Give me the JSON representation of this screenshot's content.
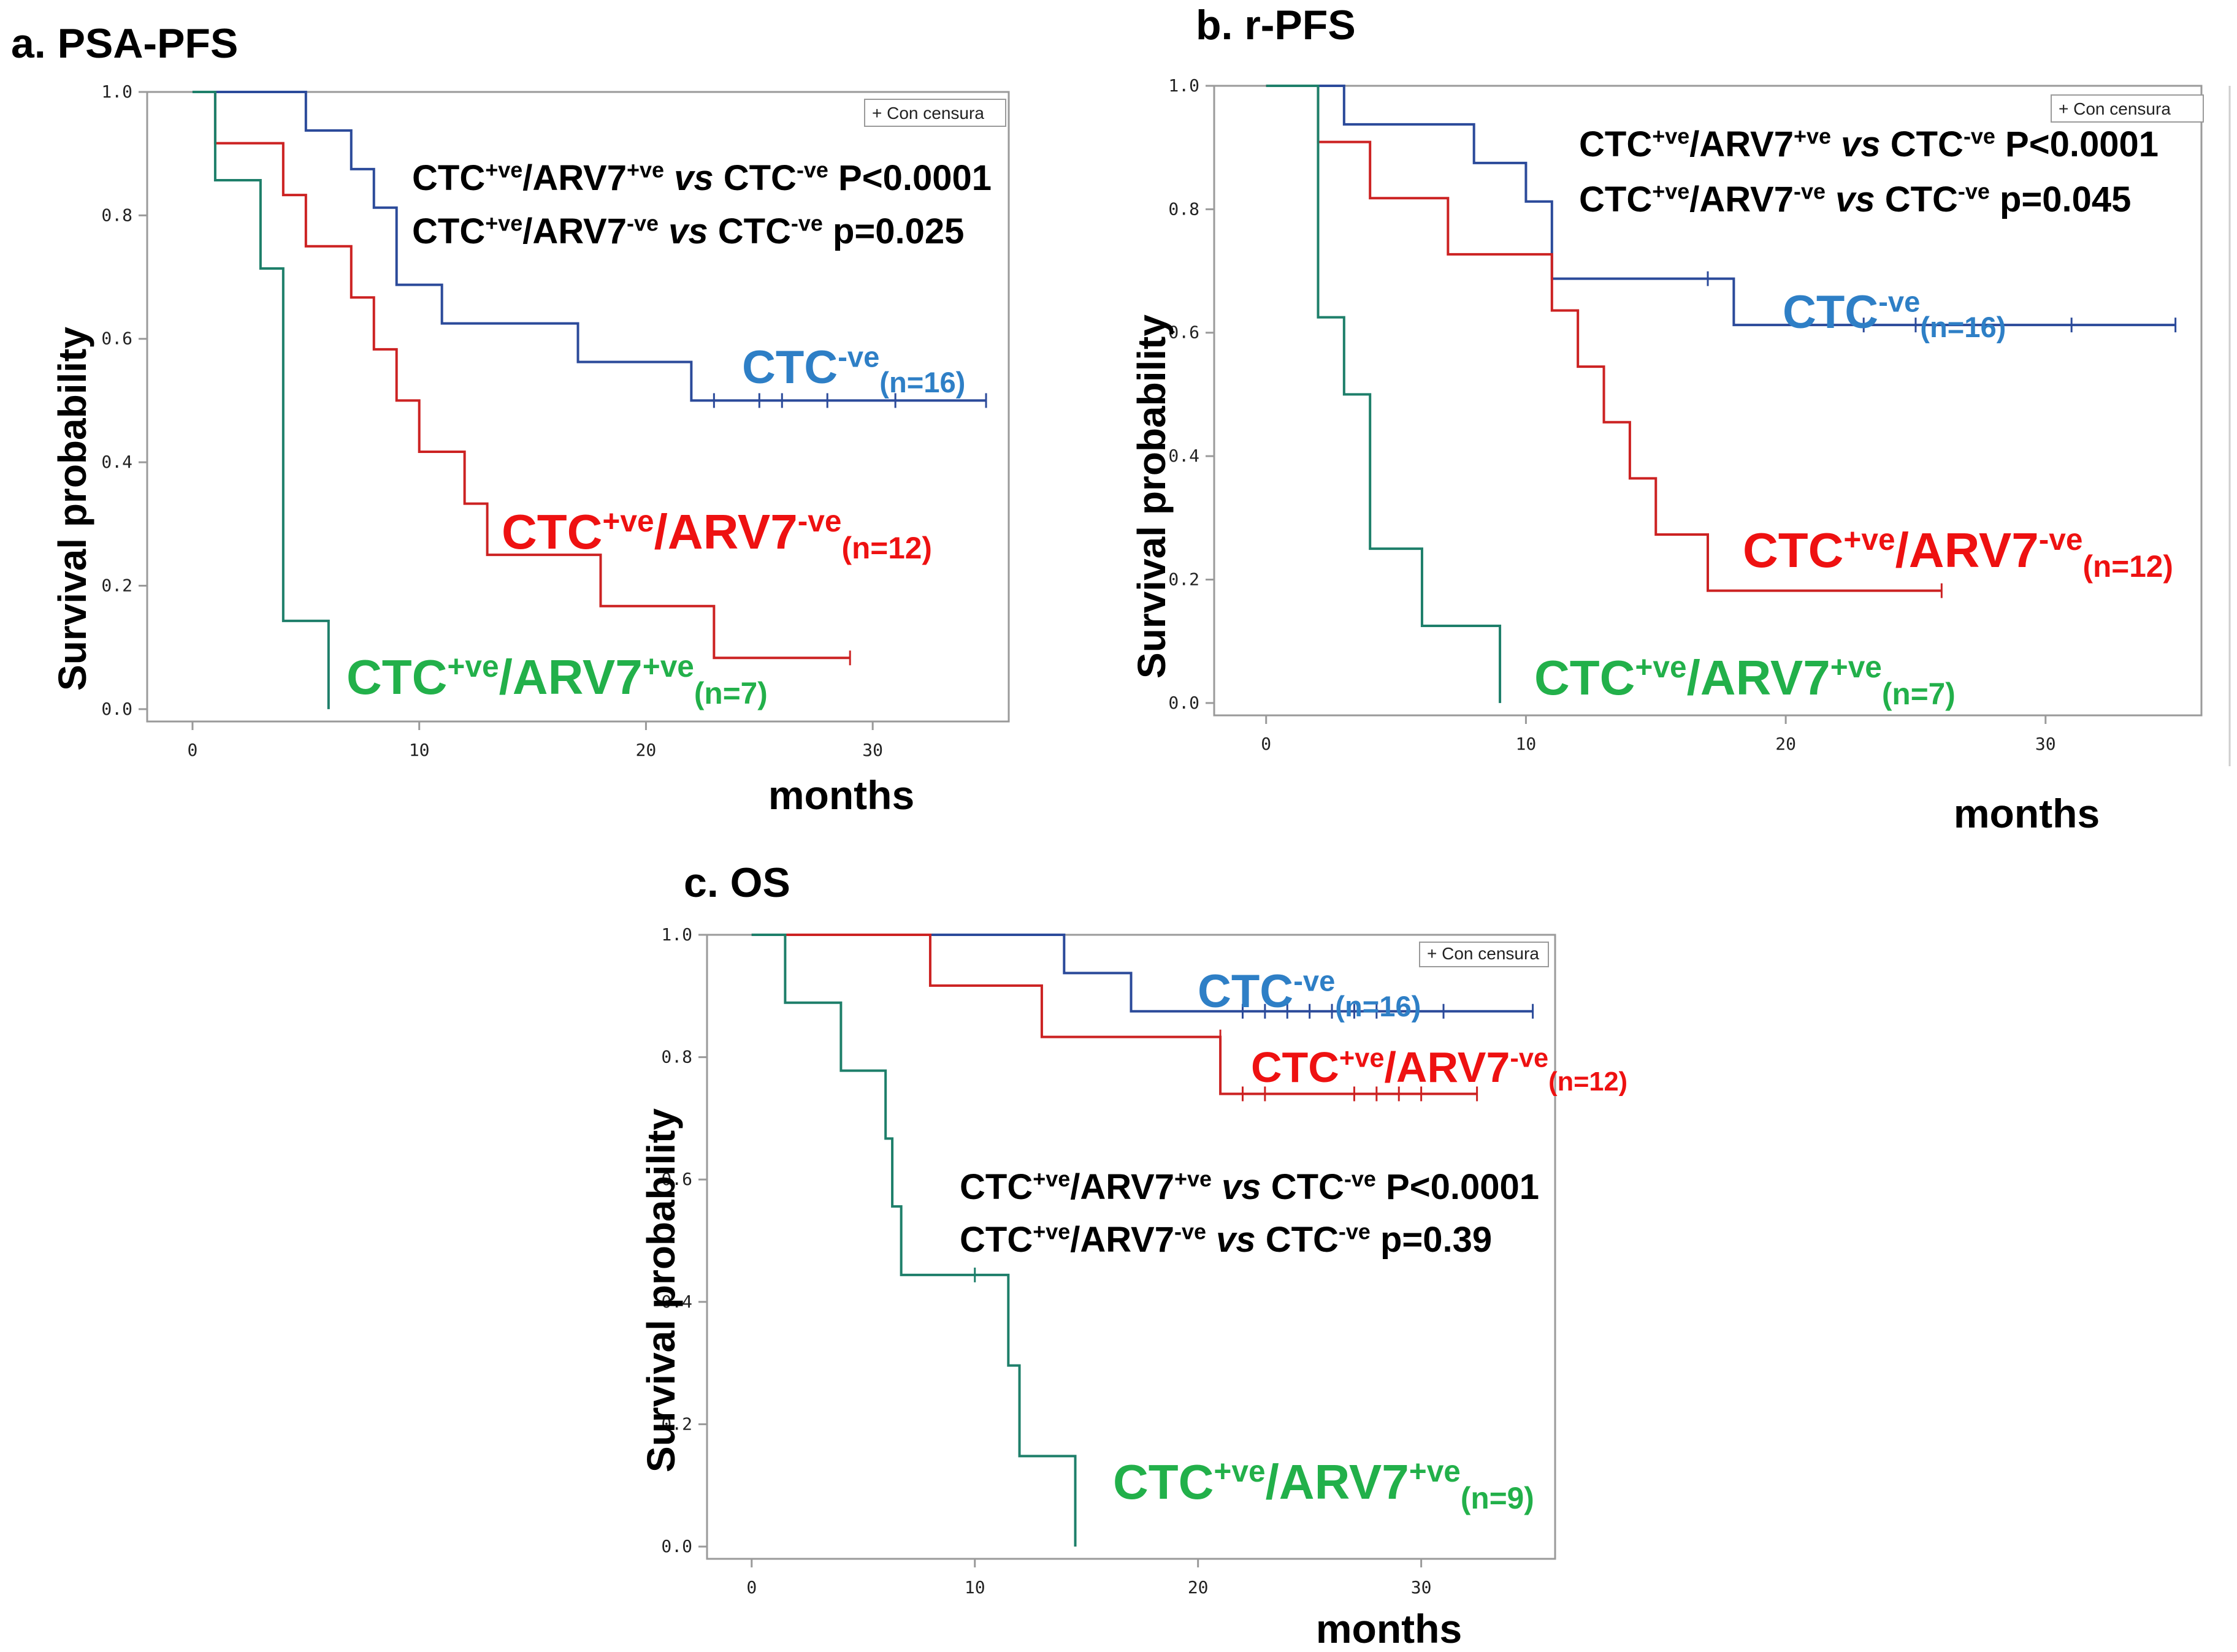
{
  "colors": {
    "ctc_neg": "#2B4A9A",
    "ctc_pos_arv7_neg": "#CC2222",
    "ctc_pos_arv7_pos": "#1E7F6A",
    "label_blue": "#2E7FC6",
    "label_red": "#EE1111",
    "label_green": "#22B04A",
    "frame": "#9a9a9a"
  },
  "chart_data": [
    {
      "type": "line",
      "subtype": "kaplan-meier",
      "title": "a. PSA-PFS",
      "xlabel": "months",
      "ylabel": "Survival probability",
      "xlim": [
        -2,
        36
      ],
      "ylim": [
        -0.02,
        1.0
      ],
      "xticks": [
        0,
        10,
        20,
        30
      ],
      "xtick_labels": [
        "0",
        "10",
        "20",
        "30"
      ],
      "yticks": [
        0.0,
        0.2,
        0.4,
        0.6,
        0.8,
        1.0
      ],
      "ytick_labels": [
        "0.0",
        "0.2",
        "0.4",
        "0.6",
        "0.8",
        "1.0"
      ],
      "legend": "+ Con censura",
      "stats": [
        {
          "sup_a": "+ve",
          "arv": "ARV7",
          "sup_b": "+ve",
          "ref": "CTC",
          "sup_c": "-ve",
          "p": "P<0.0001"
        },
        {
          "sup_a": "+ve",
          "arv": "ARV7",
          "sup_b": "-ve",
          "ref": "CTC",
          "sup_c": "-ve",
          "p": "p=0.025"
        }
      ],
      "series": [
        {
          "name": "CTC-ve",
          "n": "(n=16)",
          "color_key": "ctc_neg",
          "label_color_key": "label_blue",
          "steps": [
            [
              0,
              1.0
            ],
            [
              5,
              0.9375
            ],
            [
              7,
              0.875
            ],
            [
              8,
              0.8125
            ],
            [
              9,
              0.6875
            ],
            [
              11,
              0.625
            ],
            [
              17,
              0.5625
            ],
            [
              22,
              0.5
            ]
          ],
          "end": 35,
          "censors": [
            [
              23,
              0.5
            ],
            [
              25,
              0.5
            ],
            [
              26,
              0.5
            ],
            [
              28,
              0.5
            ],
            [
              31,
              0.5
            ],
            [
              35,
              0.5
            ]
          ]
        },
        {
          "name": "CTC+ve/ARV7-ve",
          "n": "(n=12)",
          "color_key": "ctc_pos_arv7_neg",
          "label_color_key": "label_red",
          "steps": [
            [
              0,
              1.0
            ],
            [
              1,
              0.917
            ],
            [
              4,
              0.833
            ],
            [
              5,
              0.75
            ],
            [
              7,
              0.667
            ],
            [
              8,
              0.583
            ],
            [
              9,
              0.5
            ],
            [
              10,
              0.417
            ],
            [
              12,
              0.333
            ],
            [
              13,
              0.25
            ],
            [
              18,
              0.167
            ],
            [
              23,
              0.083
            ]
          ],
          "end": 29,
          "censors": [
            [
              29,
              0.083
            ]
          ]
        },
        {
          "name": "CTC+ve/ARV7+ve",
          "n": "(n=7)",
          "color_key": "ctc_pos_arv7_pos",
          "label_color_key": "label_green",
          "steps": [
            [
              0,
              1.0
            ],
            [
              1,
              0.857
            ],
            [
              3,
              0.714
            ],
            [
              4,
              0.143
            ],
            [
              6,
              0.0
            ]
          ],
          "end": 6,
          "censors": []
        }
      ]
    },
    {
      "type": "line",
      "subtype": "kaplan-meier",
      "title": "b. r-PFS",
      "xlabel": "months",
      "ylabel": "Survival probability",
      "xlim": [
        -2,
        36
      ],
      "ylim": [
        -0.02,
        1.0
      ],
      "xticks": [
        0,
        10,
        20,
        30
      ],
      "xtick_labels": [
        "0",
        "10",
        "20",
        "30"
      ],
      "yticks": [
        0.0,
        0.2,
        0.4,
        0.6,
        0.8,
        1.0
      ],
      "ytick_labels": [
        "0.0",
        "0.2",
        "0.4",
        "0.6",
        "0.8",
        "1.0"
      ],
      "legend": "+ Con censura",
      "stats": [
        {
          "sup_a": "+ve",
          "arv": "ARV7",
          "sup_b": "+ve",
          "ref": "CTC",
          "sup_c": "-ve",
          "p": "P<0.0001"
        },
        {
          "sup_a": "+ve",
          "arv": "ARV7",
          "sup_b": "-ve",
          "ref": "CTC",
          "sup_c": "-ve",
          "p": "p=0.045"
        }
      ],
      "series": [
        {
          "name": "CTC-ve",
          "n": "(n=16)",
          "color_key": "ctc_neg",
          "label_color_key": "label_blue",
          "steps": [
            [
              0,
              1.0
            ],
            [
              3,
              0.9375
            ],
            [
              8,
              0.875
            ],
            [
              10,
              0.8125
            ],
            [
              11,
              0.6875
            ],
            [
              18,
              0.6125
            ]
          ],
          "end": 35,
          "censors": [
            [
              17,
              0.6875
            ],
            [
              23,
              0.6125
            ],
            [
              25,
              0.6125
            ],
            [
              31,
              0.6125
            ],
            [
              35,
              0.6125
            ]
          ]
        },
        {
          "name": "CTC+ve/ARV7-ve",
          "n": "(n=12)",
          "color_key": "ctc_pos_arv7_neg",
          "label_color_key": "label_red",
          "steps": [
            [
              0,
              1.0
            ],
            [
              2,
              0.909
            ],
            [
              4,
              0.818
            ],
            [
              7,
              0.727
            ],
            [
              11,
              0.636
            ],
            [
              12,
              0.545
            ],
            [
              13,
              0.455
            ],
            [
              14,
              0.364
            ],
            [
              15,
              0.273
            ],
            [
              17,
              0.182
            ]
          ],
          "end": 26,
          "censors": [
            [
              26,
              0.182
            ]
          ]
        },
        {
          "name": "CTC+ve/ARV7+ve",
          "n": "(n=7)",
          "color_key": "ctc_pos_arv7_pos",
          "label_color_key": "label_green",
          "steps": [
            [
              0,
              1.0
            ],
            [
              2,
              0.625
            ],
            [
              3,
              0.5
            ],
            [
              4,
              0.25
            ],
            [
              6,
              0.125
            ],
            [
              9,
              0.0
            ]
          ],
          "end": 9,
          "censors": []
        }
      ]
    },
    {
      "type": "line",
      "subtype": "kaplan-meier",
      "title": "c. OS",
      "xlabel": "months",
      "ylabel": "Survival probability",
      "xlim": [
        -2,
        36
      ],
      "ylim": [
        -0.02,
        1.0
      ],
      "xticks": [
        0,
        10,
        20,
        30
      ],
      "xtick_labels": [
        "0",
        "10",
        "20",
        "30"
      ],
      "yticks": [
        0.0,
        0.2,
        0.4,
        0.6,
        0.8,
        1.0
      ],
      "ytick_labels": [
        "0.0",
        "0.2",
        "0.4",
        "0.6",
        "0.8",
        "1.0"
      ],
      "legend": "+ Con censura",
      "stats": [
        {
          "sup_a": "+ve",
          "arv": "ARV7",
          "sup_b": "+ve",
          "ref": "CTC",
          "sup_c": "-ve",
          "p": "P<0.0001"
        },
        {
          "sup_a": "+ve",
          "arv": "ARV7",
          "sup_b": "-ve",
          "ref": "CTC",
          "sup_c": "-ve",
          "p": "p=0.39"
        }
      ],
      "series": [
        {
          "name": "CTC-ve",
          "n": "(n=16)",
          "color_key": "ctc_neg",
          "label_color_key": "label_blue",
          "steps": [
            [
              0,
              1.0
            ],
            [
              14,
              0.9375
            ],
            [
              17,
              0.875
            ]
          ],
          "end": 35,
          "censors": [
            [
              22,
              0.875
            ],
            [
              23,
              0.875
            ],
            [
              24,
              0.875
            ],
            [
              25,
              0.875
            ],
            [
              26,
              0.875
            ],
            [
              27,
              0.875
            ],
            [
              28,
              0.875
            ],
            [
              31,
              0.875
            ],
            [
              35,
              0.875
            ]
          ]
        },
        {
          "name": "CTC+ve/ARV7-ve",
          "n": "(n=12)",
          "color_key": "ctc_pos_arv7_neg",
          "label_color_key": "label_red",
          "steps": [
            [
              0,
              1.0
            ],
            [
              8,
              0.917
            ],
            [
              13,
              0.833
            ],
            [
              21,
              0.74
            ]
          ],
          "end": 32.5,
          "censors": [
            [
              21,
              0.833
            ],
            [
              22,
              0.74
            ],
            [
              23,
              0.74
            ],
            [
              27,
              0.74
            ],
            [
              28,
              0.74
            ],
            [
              29,
              0.74
            ],
            [
              30,
              0.74
            ],
            [
              32.5,
              0.74
            ]
          ]
        },
        {
          "name": "CTC+ve/ARV7+ve",
          "n": "(n=9)",
          "color_key": "ctc_pos_arv7_pos",
          "label_color_key": "label_green",
          "steps": [
            [
              0,
              1.0
            ],
            [
              1.5,
              0.889
            ],
            [
              4,
              0.778
            ],
            [
              6,
              0.667
            ],
            [
              6.3,
              0.556
            ],
            [
              6.7,
              0.444
            ],
            [
              11.5,
              0.296
            ],
            [
              12,
              0.148
            ],
            [
              14.5,
              0.0
            ]
          ],
          "end": 14.5,
          "censors": [
            [
              10,
              0.444
            ]
          ]
        }
      ]
    }
  ]
}
